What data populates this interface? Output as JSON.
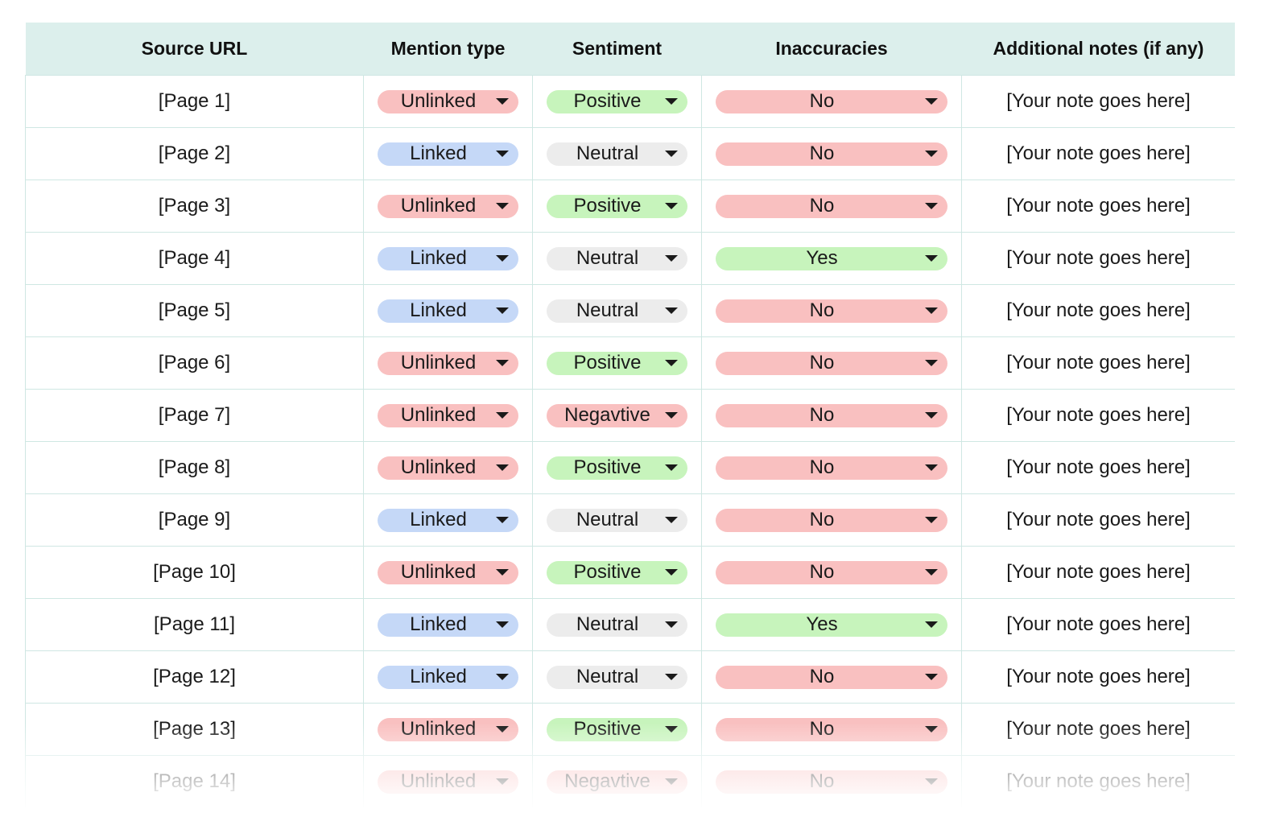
{
  "colors": {
    "header_bg": "#dcefec",
    "grid_line": "#cfe7e3",
    "Unlinked": "#f9c0c0",
    "Linked": "#c5d8f7",
    "Positive": "#c7f4bc",
    "Neutral": "#ececec",
    "Negavtive": "#f9c0c0",
    "No": "#f9c0c0",
    "Yes": "#c7f4bc"
  },
  "headers": {
    "source_url": "Source URL",
    "mention_type": "Mention type",
    "sentiment": "Sentiment",
    "inaccuracies": "Inaccuracies",
    "notes": "Additional notes (if any)"
  },
  "rows": [
    {
      "source": "[Page 1]",
      "mention": "Unlinked",
      "sentiment": "Positive",
      "inaccuracies": "No",
      "note": "[Your note goes here]"
    },
    {
      "source": "[Page 2]",
      "mention": "Linked",
      "sentiment": "Neutral",
      "inaccuracies": "No",
      "note": "[Your note goes here]"
    },
    {
      "source": "[Page 3]",
      "mention": "Unlinked",
      "sentiment": "Positive",
      "inaccuracies": "No",
      "note": "[Your note goes here]"
    },
    {
      "source": "[Page 4]",
      "mention": "Linked",
      "sentiment": "Neutral",
      "inaccuracies": "Yes",
      "note": "[Your note goes here]"
    },
    {
      "source": "[Page 5]",
      "mention": "Linked",
      "sentiment": "Neutral",
      "inaccuracies": "No",
      "note": "[Your note goes here]"
    },
    {
      "source": "[Page 6]",
      "mention": "Unlinked",
      "sentiment": "Positive",
      "inaccuracies": "No",
      "note": "[Your note goes here]"
    },
    {
      "source": "[Page 7]",
      "mention": "Unlinked",
      "sentiment": "Negavtive",
      "inaccuracies": "No",
      "note": "[Your note goes here]"
    },
    {
      "source": "[Page 8]",
      "mention": "Unlinked",
      "sentiment": "Positive",
      "inaccuracies": "No",
      "note": "[Your note goes here]"
    },
    {
      "source": "[Page 9]",
      "mention": "Linked",
      "sentiment": "Neutral",
      "inaccuracies": "No",
      "note": "[Your note goes here]"
    },
    {
      "source": "[Page 10]",
      "mention": "Unlinked",
      "sentiment": "Positive",
      "inaccuracies": "No",
      "note": "[Your note goes here]"
    },
    {
      "source": "[Page 11]",
      "mention": "Linked",
      "sentiment": "Neutral",
      "inaccuracies": "Yes",
      "note": "[Your note goes here]"
    },
    {
      "source": "[Page 12]",
      "mention": "Linked",
      "sentiment": "Neutral",
      "inaccuracies": "No",
      "note": "[Your note goes here]"
    },
    {
      "source": "[Page 13]",
      "mention": "Unlinked",
      "sentiment": "Positive",
      "inaccuracies": "No",
      "note": "[Your note goes here]"
    },
    {
      "source": "[Page 14]",
      "mention": "Unlinked",
      "sentiment": "Negavtive",
      "inaccuracies": "No",
      "note": "[Your note goes here]"
    }
  ]
}
